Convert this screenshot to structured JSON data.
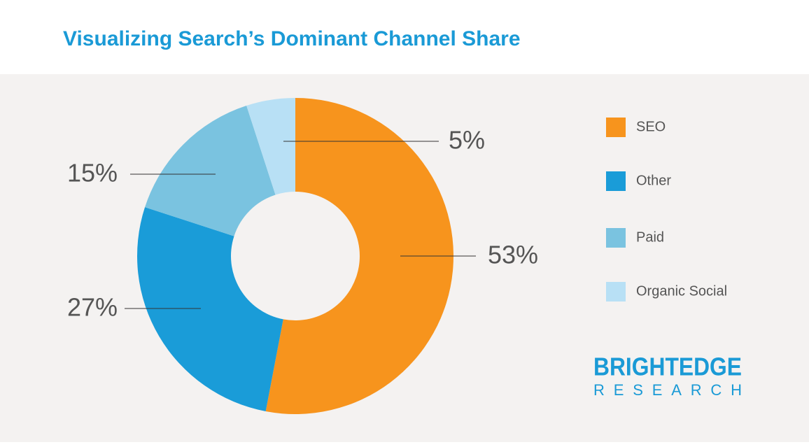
{
  "chart_data": {
    "type": "pie",
    "donut": true,
    "title": "Visualizing Search’s Dominant Channel Share",
    "categories": [
      "SEO",
      "Other",
      "Paid",
      "Organic Social"
    ],
    "values": [
      53,
      27,
      15,
      5
    ],
    "value_labels": [
      "53%",
      "27%",
      "15%",
      "5%"
    ],
    "colors": [
      "#f7941d",
      "#1a9cd8",
      "#7ac3e0",
      "#b8e0f5"
    ],
    "legend": "right",
    "brand": "BRIGHTEDGE",
    "brand_sub": "RESEARCH"
  }
}
